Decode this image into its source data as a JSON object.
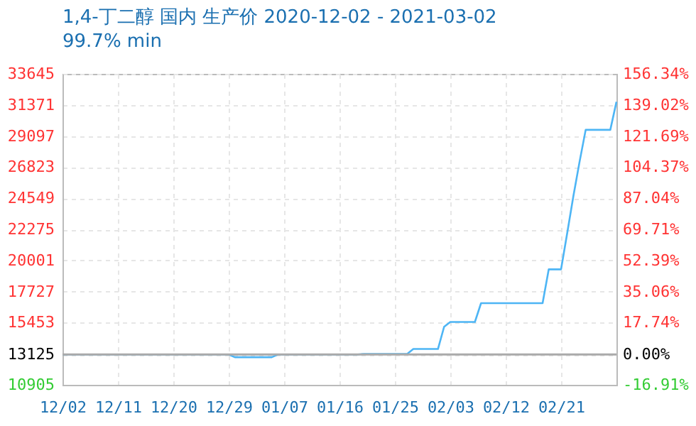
{
  "chart_data": {
    "type": "line",
    "title": "1,4-丁二醇 国内 生产价 2020-12-02 - 2021-03-02",
    "subtitle": "99.7% min",
    "x": [
      "2020-12-02",
      "2020-12-29",
      "2020-12-30",
      "2021-01-05",
      "2021-01-06",
      "2021-01-19",
      "2021-01-20",
      "2021-01-27",
      "2021-01-28",
      "2021-02-01",
      "2021-02-02",
      "2021-02-03",
      "2021-02-07",
      "2021-02-08",
      "2021-02-18",
      "2021-02-19",
      "2021-02-21",
      "2021-02-22",
      "2021-02-23",
      "2021-02-24",
      "2021-02-25",
      "2021-03-01",
      "2021-03-02"
    ],
    "series": [
      {
        "color": "#4db5f5",
        "values": [
          13125,
          13125,
          12925,
          12925,
          13125,
          13125,
          13160,
          13160,
          13525,
          13525,
          15150,
          15500,
          15500,
          16875,
          16875,
          19350,
          19350,
          22000,
          24700,
          27200,
          29550,
          29550,
          31600
        ]
      }
    ],
    "xlim": [
      "2020-12-02",
      "2021-03-02"
    ],
    "xticks": [
      {
        "value": "2020-12-02",
        "label": "12/02"
      },
      {
        "value": "2020-12-11",
        "label": "12/11"
      },
      {
        "value": "2020-12-20",
        "label": "12/20"
      },
      {
        "value": "2020-12-29",
        "label": "12/29"
      },
      {
        "value": "2021-01-07",
        "label": "01/07"
      },
      {
        "value": "2021-01-16",
        "label": "01/16"
      },
      {
        "value": "2021-01-25",
        "label": "01/25"
      },
      {
        "value": "2021-02-03",
        "label": "02/03"
      },
      {
        "value": "2021-02-12",
        "label": "02/12"
      },
      {
        "value": "2021-02-21",
        "label": "02/21"
      }
    ],
    "ylim": [
      10905,
      33645
    ],
    "yticks": [
      10905,
      13125,
      15453,
      17727,
      20001,
      22275,
      24549,
      26823,
      29097,
      31371,
      33645
    ],
    "y2lim": [
      -16.91,
      156.34
    ],
    "y2ticks": [
      {
        "value": -16.91,
        "label": "-16.91%"
      },
      {
        "value": 0,
        "label": "0.00%"
      },
      {
        "value": 17.74,
        "label": "17.74%"
      },
      {
        "value": 35.06,
        "label": "35.06%"
      },
      {
        "value": 52.39,
        "label": "52.39%"
      },
      {
        "value": 69.71,
        "label": "69.71%"
      },
      {
        "value": 87.04,
        "label": "87.04%"
      },
      {
        "value": 104.37,
        "label": "104.37%"
      },
      {
        "value": 121.69,
        "label": "121.69%"
      },
      {
        "value": 139.02,
        "label": "139.02%"
      },
      {
        "value": 156.34,
        "label": "156.34%"
      }
    ],
    "ref_lines": [
      {
        "axis": "y2",
        "value": 0,
        "color": "#aaaaaa"
      }
    ],
    "grid": true,
    "line_style": "solid"
  }
}
